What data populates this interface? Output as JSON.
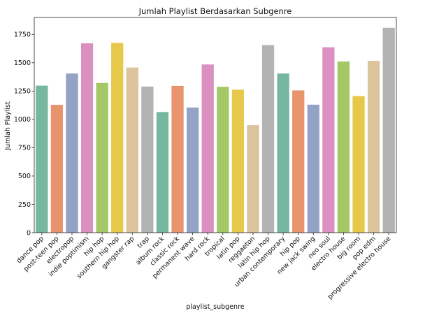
{
  "chart_data": {
    "type": "bar",
    "title": "Jumlah Playlist Berdasarkan Subgenre",
    "xlabel": "playlist_subgenre",
    "ylabel": "Jumlah Playlist",
    "ylim": [
      0,
      1900
    ],
    "yticks": [
      0,
      250,
      500,
      750,
      1000,
      1250,
      1500,
      1750
    ],
    "grid": false,
    "categories": [
      "dance pop",
      "post-teen pop",
      "electropop",
      "indie poptimism",
      "hip hop",
      "southern hip hop",
      "gangster rap",
      "trap",
      "album rock",
      "classic rock",
      "permanent wave",
      "hard rock",
      "tropical",
      "latin pop",
      "reggaeton",
      "latin hip hop",
      "urban contemporary",
      "hip pop",
      "new jack swing",
      "neo soul",
      "electro house",
      "big room",
      "pop edm",
      "progressive electro house"
    ],
    "values": [
      1298,
      1129,
      1405,
      1672,
      1322,
      1675,
      1458,
      1290,
      1065,
      1296,
      1105,
      1485,
      1288,
      1262,
      949,
      1656,
      1405,
      1256,
      1130,
      1637,
      1511,
      1206,
      1517,
      1809
    ],
    "colors": [
      "#76b7a0",
      "#e8956e",
      "#93a3c6",
      "#da91c0",
      "#a3c865",
      "#e6c84a",
      "#dbc39b",
      "#b3b3b3"
    ]
  }
}
